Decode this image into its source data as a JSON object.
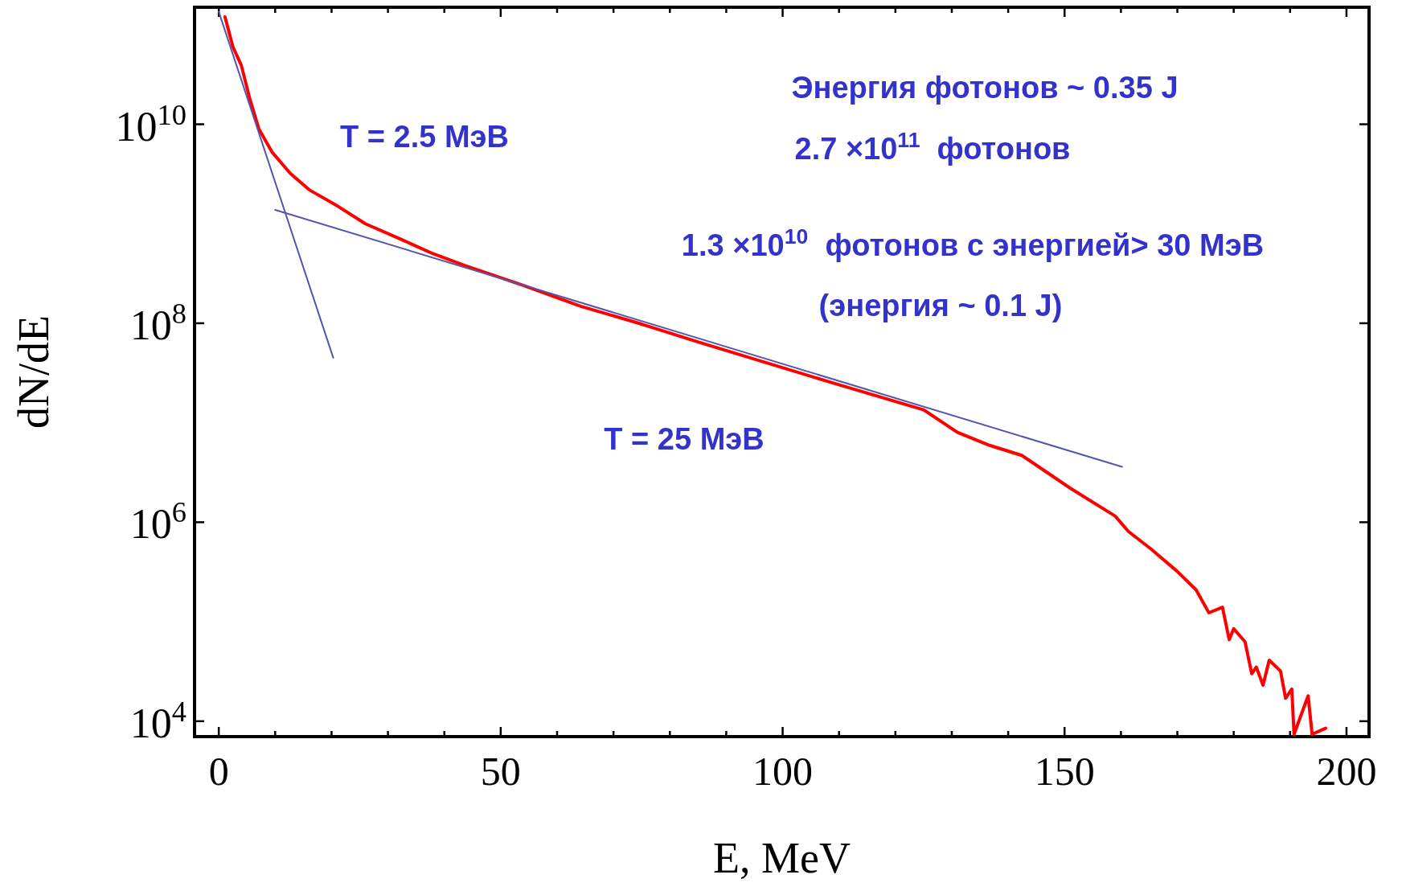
{
  "chart_data": {
    "type": "line",
    "xlabel": "E, MeV",
    "ylabel": "dN/dE",
    "log": "y",
    "xlim": [
      -4.3,
      204
    ],
    "ylim": [
      7000,
      150000000000.0
    ],
    "xticks": [
      0,
      {
        "value": 10,
        "label": null
      },
      {
        "value": 20,
        "label": null
      },
      {
        "value": 30,
        "label": null
      },
      {
        "value": 40,
        "label": null
      },
      50,
      {
        "value": 60,
        "label": null
      },
      {
        "value": 70,
        "label": null
      },
      {
        "value": 80,
        "label": null
      },
      {
        "value": 90,
        "label": null
      },
      100,
      {
        "value": 110,
        "label": null
      },
      {
        "value": 120,
        "label": null
      },
      {
        "value": 130,
        "label": null
      },
      {
        "value": 140,
        "label": null
      },
      150,
      {
        "value": 160,
        "label": null
      },
      {
        "value": 170,
        "label": null
      },
      {
        "value": 180,
        "label": null
      },
      {
        "value": 190,
        "label": null
      },
      200
    ],
    "yticks": [
      {
        "value": 10000,
        "label": "10$^{4}$"
      },
      {
        "value": 1000000,
        "label": "10$^{6}$"
      },
      {
        "value": 100000000,
        "label": "10$^{8}$"
      },
      {
        "value": 10000000000,
        "label": "10$^{10}$"
      }
    ],
    "grid": false,
    "marker": "none",
    "series": [
      {
        "color": "#ff0000",
        "x": [
          1.1,
          2.5,
          4.0,
          5.5,
          7.1,
          9.5,
          12.7,
          16,
          20.7,
          26,
          32.5,
          38,
          43.6,
          54,
          64.2,
          75,
          85.3,
          109,
          125,
          131,
          136.8,
          142.4,
          151,
          159,
          161.3,
          165.3,
          170,
          173.3,
          175.6,
          178,
          179.2,
          180,
          182,
          183.2,
          184,
          185.2,
          186.3,
          188.3,
          189.2,
          190.3,
          190.7,
          193.2,
          193.9,
          196.3
        ],
        "values": [
          120000000000.0,
          60000000000.0,
          39000000000.0,
          18000000000.0,
          9000000000.0,
          5200000000.0,
          3200000000.0,
          2200000000.0,
          1550000000.0,
          1000000000.0,
          690000000.0,
          500000000.0,
          380000000.0,
          240000000.0,
          148000000.0,
          98000000.0,
          64000000.0,
          25000000.0,
          13500000.0,
          8000000.0,
          5900000.0,
          4700000.0,
          2200000.0,
          1150000.0,
          810000.0,
          540000.0,
          320000.0,
          210000.0,
          123000.0,
          140000.0,
          66000.0,
          85000.0,
          63000.0,
          30000.0,
          35000.0,
          23000.0,
          41000.0,
          32000.0,
          17000.0,
          21000.0,
          7400,
          18000.0,
          7400,
          8500
        ]
      },
      {
        "color": "#5555aa",
        "x": [
          0,
          20.3
        ],
        "values": [
          135000000000.0,
          45000000.0
        ]
      },
      {
        "color": "#5555aa",
        "x": [
          10,
          160.2
        ],
        "values": [
          1380000000.0,
          3600000.0
        ]
      }
    ],
    "annotations": [
      "T = 2.5 МэВ",
      "T = 25 МэВ",
      "Энергия фотонов ~ 0.35 J",
      "2.7 ×10$^{11}$  фотонов",
      "1.3 ×10$^{10}$  фотонов с энергией> 30 МэВ",
      "(энергия ~ 0.1 J)"
    ]
  }
}
